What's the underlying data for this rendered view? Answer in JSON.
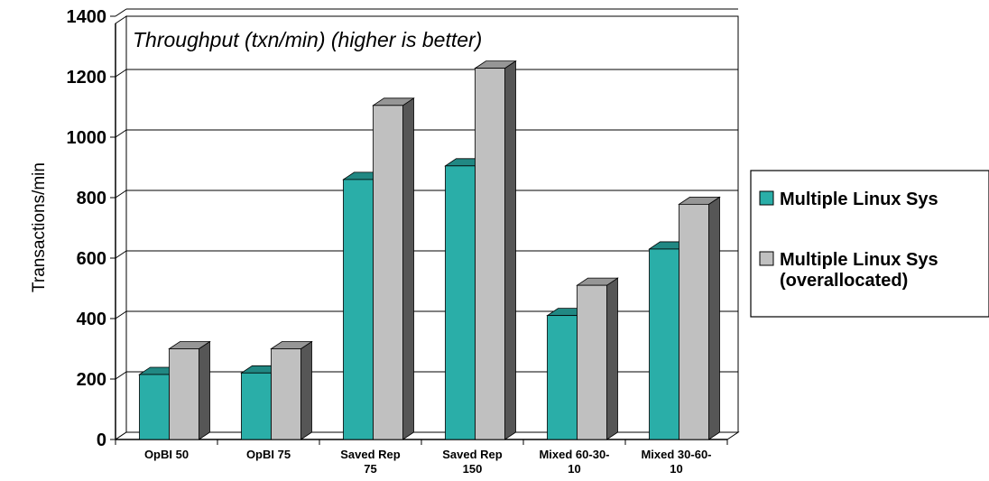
{
  "chart_data": {
    "type": "bar",
    "title": "Throughput (txn/min) (higher is better)",
    "ylabel": "Transactions/min",
    "xlabel": "",
    "ylim": [
      0,
      1400
    ],
    "yticks": [
      0,
      200,
      400,
      600,
      800,
      1000,
      1200,
      1400
    ],
    "grid": true,
    "legend_position": "right",
    "categories": [
      [
        "OpBI 50"
      ],
      [
        "OpBI 75"
      ],
      [
        "Saved Rep",
        "75"
      ],
      [
        "Saved Rep",
        "150"
      ],
      [
        "Mixed 60-30-",
        "10"
      ],
      [
        "Mixed 30-60-",
        "10"
      ]
    ],
    "series": [
      {
        "name": [
          "Multiple Linux Sys"
        ],
        "color": "#2aaea8",
        "values": [
          215,
          220,
          860,
          905,
          410,
          630
        ]
      },
      {
        "name": [
          "Multiple Linux Sys",
          "(overallocated)"
        ],
        "color": "#c0c0c0",
        "values": [
          300,
          300,
          1105,
          1228,
          510,
          778
        ]
      }
    ]
  }
}
